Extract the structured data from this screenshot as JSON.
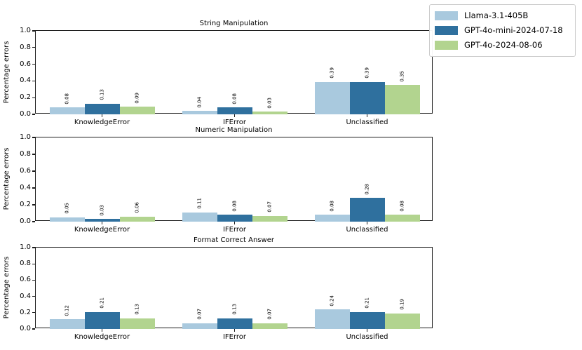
{
  "legend": {
    "entries": [
      {
        "label": "Llama-3.1-405B",
        "color": "#a9c9de"
      },
      {
        "label": "GPT-4o-mini-2024-07-18",
        "color": "#2f709e"
      },
      {
        "label": "GPT-4o-2024-08-06",
        "color": "#b2d48f"
      }
    ],
    "position": "top-right"
  },
  "chart_data": [
    {
      "type": "bar",
      "title": "String Manipulation",
      "xlabel": "",
      "ylabel": "Percentage errors",
      "ylim": [
        0.0,
        1.0
      ],
      "yticks": [
        0.0,
        0.2,
        0.4,
        0.6,
        0.8,
        1.0
      ],
      "grid": false,
      "value_labels": "rotated, 2 decimals",
      "categories": [
        "KnowledgeError",
        "IFError",
        "Unclassified"
      ],
      "series": [
        {
          "name": "Llama-3.1-405B",
          "color": "#a9c9de",
          "values": [
            0.08,
            0.04,
            0.39
          ]
        },
        {
          "name": "GPT-4o-mini-2024-07-18",
          "color": "#2f709e",
          "values": [
            0.13,
            0.08,
            0.39
          ]
        },
        {
          "name": "GPT-4o-2024-08-06",
          "color": "#b2d48f",
          "values": [
            0.09,
            0.03,
            0.35
          ]
        }
      ]
    },
    {
      "type": "bar",
      "title": "Numeric Manipulation",
      "xlabel": "",
      "ylabel": "Percentage errors",
      "ylim": [
        0.0,
        1.0
      ],
      "yticks": [
        0.0,
        0.2,
        0.4,
        0.6,
        0.8,
        1.0
      ],
      "grid": false,
      "value_labels": "rotated, 2 decimals",
      "categories": [
        "KnowledgeError",
        "IFError",
        "Unclassified"
      ],
      "series": [
        {
          "name": "Llama-3.1-405B",
          "color": "#a9c9de",
          "values": [
            0.05,
            0.11,
            0.08
          ]
        },
        {
          "name": "GPT-4o-mini-2024-07-18",
          "color": "#2f709e",
          "values": [
            0.03,
            0.08,
            0.28
          ]
        },
        {
          "name": "GPT-4o-2024-08-06",
          "color": "#b2d48f",
          "values": [
            0.06,
            0.07,
            0.08
          ]
        }
      ]
    },
    {
      "type": "bar",
      "title": "Format Correct Answer",
      "xlabel": "",
      "ylabel": "Percentage errors",
      "ylim": [
        0.0,
        1.0
      ],
      "yticks": [
        0.0,
        0.2,
        0.4,
        0.6,
        0.8,
        1.0
      ],
      "grid": false,
      "value_labels": "rotated, 2 decimals",
      "categories": [
        "KnowledgeError",
        "IFError",
        "Unclassified"
      ],
      "series": [
        {
          "name": "Llama-3.1-405B",
          "color": "#a9c9de",
          "values": [
            0.12,
            0.07,
            0.24
          ]
        },
        {
          "name": "GPT-4o-mini-2024-07-18",
          "color": "#2f709e",
          "values": [
            0.21,
            0.13,
            0.21
          ]
        },
        {
          "name": "GPT-4o-2024-08-06",
          "color": "#b2d48f",
          "values": [
            0.13,
            0.07,
            0.19
          ]
        }
      ]
    }
  ]
}
